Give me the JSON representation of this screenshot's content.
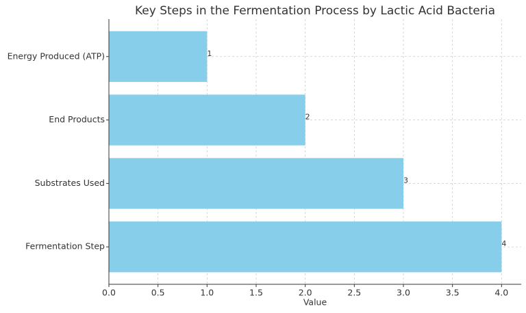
{
  "chart_data": {
    "type": "barh",
    "title": "Key Steps in the Fermentation Process by Lactic Acid Bacteria",
    "x_label": "Value",
    "categories": [
      "Fermentation Step",
      "Substrates Used",
      "End Products",
      "Energy Produced (ATP)"
    ],
    "values": [
      4,
      3,
      2,
      1
    ],
    "color": "#87ceeb",
    "xlim": [
      0,
      4.2
    ],
    "xticks": [
      {
        "value": 0,
        "label": "0.0"
      },
      0.5,
      {
        "value": 1,
        "label": "1.0"
      },
      1.5,
      {
        "value": 2,
        "label": "2.0"
      },
      2.5,
      {
        "value": 3,
        "label": "3.0"
      },
      3.5,
      {
        "value": 4,
        "label": "4.0"
      }
    ],
    "grid": true
  }
}
